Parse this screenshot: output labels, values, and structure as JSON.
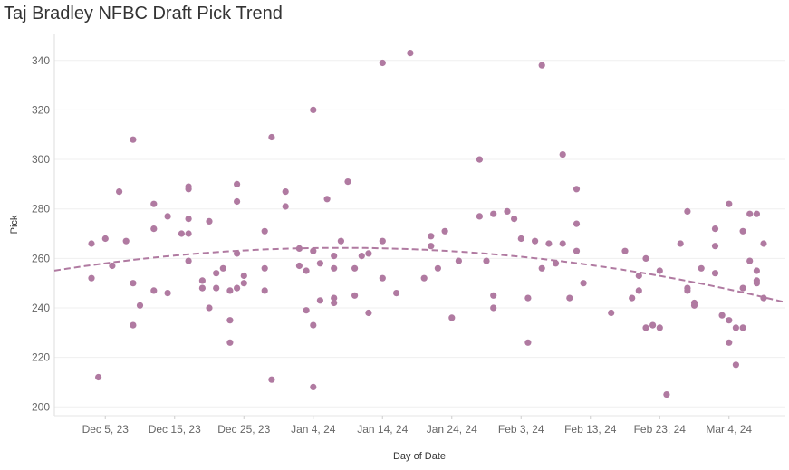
{
  "chart_data": {
    "type": "scatter",
    "title": "Taj Bradley NFBC Draft Pick Trend",
    "xlabel": "Day of Date",
    "ylabel": "Pick",
    "x_start": "Nov 28, 23",
    "x_range_days": [
      0,
      105
    ],
    "ylim": [
      197,
      350
    ],
    "yticks": [
      200,
      220,
      240,
      260,
      280,
      300,
      320,
      340
    ],
    "xticks": [
      {
        "label": "Dec 5, 23",
        "day": 7
      },
      {
        "label": "Dec 15, 23",
        "day": 17
      },
      {
        "label": "Dec 25, 23",
        "day": 27
      },
      {
        "label": "Jan 4, 24",
        "day": 37
      },
      {
        "label": "Jan 14, 24",
        "day": 47
      },
      {
        "label": "Jan 24, 24",
        "day": 57
      },
      {
        "label": "Feb 3, 24",
        "day": 67
      },
      {
        "label": "Feb 13, 24",
        "day": 77
      },
      {
        "label": "Feb 23, 24",
        "day": 87
      },
      {
        "label": "Mar 4, 24",
        "day": 97
      }
    ],
    "points": [
      [
        5,
        266
      ],
      [
        5,
        252
      ],
      [
        6,
        212
      ],
      [
        7,
        268
      ],
      [
        8,
        257
      ],
      [
        9,
        287
      ],
      [
        10,
        267
      ],
      [
        11,
        250
      ],
      [
        11,
        233
      ],
      [
        11,
        308
      ],
      [
        12,
        241
      ],
      [
        14,
        282
      ],
      [
        14,
        272
      ],
      [
        14,
        247
      ],
      [
        16,
        277
      ],
      [
        16,
        246
      ],
      [
        18,
        270
      ],
      [
        19,
        289
      ],
      [
        19,
        288
      ],
      [
        19,
        276
      ],
      [
        19,
        270
      ],
      [
        19,
        259
      ],
      [
        21,
        251
      ],
      [
        21,
        248
      ],
      [
        22,
        275
      ],
      [
        22,
        240
      ],
      [
        23,
        254
      ],
      [
        23,
        248
      ],
      [
        24,
        256
      ],
      [
        25,
        247
      ],
      [
        25,
        235
      ],
      [
        25,
        226
      ],
      [
        26,
        290
      ],
      [
        26,
        283
      ],
      [
        26,
        262
      ],
      [
        26,
        248
      ],
      [
        27,
        253
      ],
      [
        27,
        250
      ],
      [
        30,
        271
      ],
      [
        30,
        256
      ],
      [
        30,
        247
      ],
      [
        31,
        309
      ],
      [
        31,
        211
      ],
      [
        33,
        287
      ],
      [
        33,
        281
      ],
      [
        35,
        264
      ],
      [
        35,
        257
      ],
      [
        36,
        255
      ],
      [
        36,
        239
      ],
      [
        37,
        320
      ],
      [
        37,
        263
      ],
      [
        37,
        233
      ],
      [
        37,
        208
      ],
      [
        38,
        258
      ],
      [
        38,
        243
      ],
      [
        39,
        284
      ],
      [
        40,
        261
      ],
      [
        40,
        256
      ],
      [
        40,
        244
      ],
      [
        40,
        242
      ],
      [
        41,
        267
      ],
      [
        42,
        291
      ],
      [
        43,
        256
      ],
      [
        43,
        245
      ],
      [
        44,
        261
      ],
      [
        45,
        262
      ],
      [
        45,
        238
      ],
      [
        47,
        339
      ],
      [
        47,
        267
      ],
      [
        47,
        252
      ],
      [
        49,
        246
      ],
      [
        51,
        343
      ],
      [
        53,
        252
      ],
      [
        54,
        269
      ],
      [
        54,
        265
      ],
      [
        55,
        256
      ],
      [
        56,
        271
      ],
      [
        57,
        236
      ],
      [
        58,
        259
      ],
      [
        61,
        300
      ],
      [
        61,
        277
      ],
      [
        62,
        259
      ],
      [
        63,
        278
      ],
      [
        63,
        245
      ],
      [
        63,
        240
      ],
      [
        65,
        279
      ],
      [
        66,
        276
      ],
      [
        67,
        268
      ],
      [
        68,
        244
      ],
      [
        68,
        226
      ],
      [
        69,
        267
      ],
      [
        70,
        338
      ],
      [
        70,
        256
      ],
      [
        71,
        266
      ],
      [
        72,
        258
      ],
      [
        73,
        302
      ],
      [
        73,
        266
      ],
      [
        74,
        244
      ],
      [
        75,
        288
      ],
      [
        75,
        274
      ],
      [
        75,
        263
      ],
      [
        76,
        250
      ],
      [
        80,
        238
      ],
      [
        82,
        263
      ],
      [
        83,
        244
      ],
      [
        84,
        253
      ],
      [
        84,
        247
      ],
      [
        85,
        260
      ],
      [
        85,
        232
      ],
      [
        86,
        233
      ],
      [
        87,
        255
      ],
      [
        87,
        232
      ],
      [
        88,
        205
      ],
      [
        90,
        266
      ],
      [
        91,
        279
      ],
      [
        91,
        248
      ],
      [
        91,
        247
      ],
      [
        92,
        242
      ],
      [
        92,
        241
      ],
      [
        93,
        256
      ],
      [
        95,
        272
      ],
      [
        95,
        265
      ],
      [
        95,
        254
      ],
      [
        96,
        237
      ],
      [
        97,
        282
      ],
      [
        97,
        235
      ],
      [
        97,
        226
      ],
      [
        98,
        232
      ],
      [
        98,
        217
      ],
      [
        99,
        271
      ],
      [
        99,
        248
      ],
      [
        99,
        232
      ],
      [
        100,
        278
      ],
      [
        100,
        259
      ],
      [
        101,
        278
      ],
      [
        101,
        255
      ],
      [
        101,
        251
      ],
      [
        101,
        250
      ],
      [
        102,
        266
      ],
      [
        102,
        244
      ]
    ],
    "trend": {
      "style": "dashed",
      "type": "polynomial",
      "coefficients": [
        255.2,
        0.4418,
        -0.005376
      ]
    },
    "colors": {
      "point": "#b07aa1",
      "trend": "#b07aa1"
    }
  }
}
